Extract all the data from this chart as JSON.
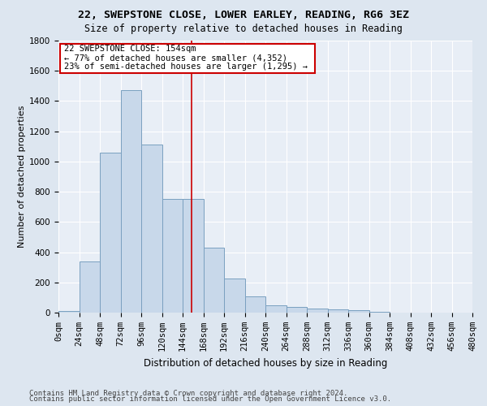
{
  "title1": "22, SWEPSTONE CLOSE, LOWER EARLEY, READING, RG6 3EZ",
  "title2": "Size of property relative to detached houses in Reading",
  "xlabel": "Distribution of detached houses by size in Reading",
  "ylabel": "Number of detached properties",
  "footer1": "Contains HM Land Registry data © Crown copyright and database right 2024.",
  "footer2": "Contains public sector information licensed under the Open Government Licence v3.0.",
  "bin_edges": [
    0,
    24,
    48,
    72,
    96,
    120,
    144,
    168,
    192,
    216,
    240,
    264,
    288,
    312,
    336,
    360,
    384,
    408,
    432,
    456,
    480
  ],
  "bar_values": [
    10,
    340,
    1060,
    1470,
    1110,
    750,
    750,
    430,
    225,
    110,
    50,
    38,
    28,
    20,
    15,
    5,
    0,
    0,
    0,
    0
  ],
  "bar_color": "#c8d8ea",
  "bar_edge_color": "#7aa0c0",
  "bar_edge_width": 0.7,
  "property_size": 154,
  "annotation_box_text1": "22 SWEPSTONE CLOSE: 154sqm",
  "annotation_box_text2": "← 77% of detached houses are smaller (4,352)",
  "annotation_box_text3": "23% of semi-detached houses are larger (1,295) →",
  "annotation_line_color": "#cc0000",
  "annotation_box_color": "#ffffff",
  "annotation_box_edge_color": "#cc0000",
  "ylim": [
    0,
    1800
  ],
  "yticks": [
    0,
    200,
    400,
    600,
    800,
    1000,
    1200,
    1400,
    1600,
    1800
  ],
  "bg_color": "#dde6f0",
  "plot_bg_color": "#e8eef6",
  "grid_color": "#ffffff",
  "title1_fontsize": 9.5,
  "title2_fontsize": 8.5,
  "xlabel_fontsize": 8.5,
  "ylabel_fontsize": 8,
  "tick_fontsize": 7.5,
  "annotation_fontsize": 7.5,
  "footer_fontsize": 6.5
}
